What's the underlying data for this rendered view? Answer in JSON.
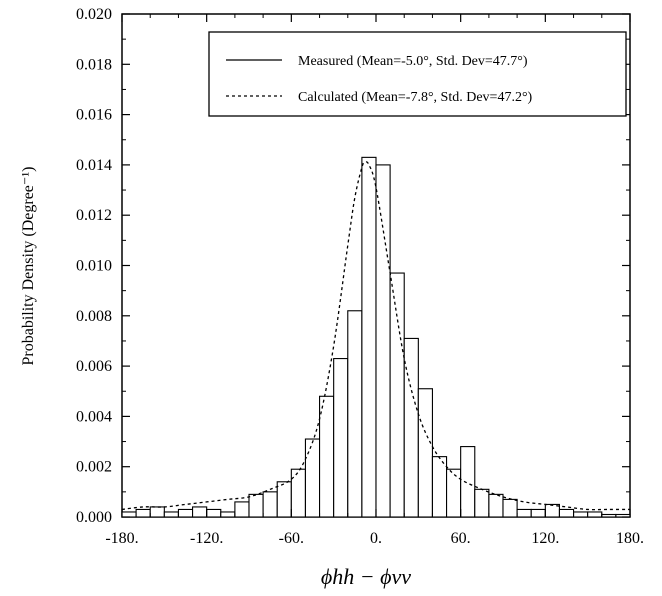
{
  "chart_data": {
    "type": "bar",
    "xlabel": "ϕhh − ϕvv",
    "ylabel": "Probability Density (Degree⁻¹)",
    "xlim": [
      -180,
      180
    ],
    "ylim": [
      0,
      0.02
    ],
    "x_ticks": [
      -180,
      -120,
      -60,
      0,
      60,
      120,
      180
    ],
    "x_tick_labels": [
      "-180.",
      "-120.",
      "-60.",
      "0.",
      "60.",
      "120.",
      "180."
    ],
    "y_ticks": [
      0,
      0.002,
      0.004,
      0.006,
      0.008,
      0.01,
      0.012,
      0.014,
      0.016,
      0.018,
      0.02
    ],
    "y_tick_labels": [
      "0.000",
      "0.002",
      "0.004",
      "0.006",
      "0.008",
      "0.010",
      "0.012",
      "0.014",
      "0.016",
      "0.018",
      "0.020"
    ],
    "bin_width": 10,
    "bin_starts": [
      -180,
      -170,
      -160,
      -150,
      -140,
      -130,
      -120,
      -110,
      -100,
      -90,
      -80,
      -70,
      -60,
      -50,
      -40,
      -30,
      -20,
      -10,
      0,
      10,
      20,
      30,
      40,
      50,
      60,
      70,
      80,
      90,
      100,
      110,
      120,
      130,
      140,
      150,
      160,
      170
    ],
    "series": [
      {
        "name": "Measured (Mean=-5.0°, Std. Dev=47.7°)",
        "style": "histogram",
        "values": [
          0.0002,
          0.0003,
          0.0004,
          0.0002,
          0.0003,
          0.0004,
          0.0003,
          0.0002,
          0.0006,
          0.0009,
          0.001,
          0.0014,
          0.0019,
          0.0031,
          0.0048,
          0.0063,
          0.0082,
          0.0143,
          0.014,
          0.0097,
          0.0071,
          0.0051,
          0.0024,
          0.0019,
          0.0028,
          0.0011,
          0.0009,
          0.0007,
          0.0003,
          0.0003,
          0.0005,
          0.0003,
          0.0002,
          0.0002,
          0.0001,
          0.0001
        ]
      },
      {
        "name": "Calculated (Mean=-7.8°, Std. Dev=47.2°)",
        "style": "dashed-line",
        "x": [
          -180,
          -165,
          -150,
          -135,
          -120,
          -105,
          -90,
          -75,
          -60,
          -50,
          -40,
          -30,
          -20,
          -15,
          -10,
          -7.8,
          -5,
          0,
          10,
          20,
          30,
          40,
          50,
          60,
          75,
          90,
          105,
          120,
          135,
          150,
          165,
          180
        ],
        "y": [
          0.0003,
          0.0004,
          0.0004,
          0.0005,
          0.0006,
          0.0007,
          0.0008,
          0.0011,
          0.0015,
          0.0023,
          0.0039,
          0.0068,
          0.0108,
          0.0127,
          0.0139,
          0.0141,
          0.014,
          0.0131,
          0.0097,
          0.0063,
          0.0041,
          0.0028,
          0.002,
          0.0015,
          0.0011,
          0.0008,
          0.0006,
          0.0005,
          0.0004,
          0.0003,
          0.0003,
          0.0003
        ]
      }
    ],
    "legend": {
      "placement": "top-right",
      "entries": [
        {
          "label": "Measured (Mean=-5.0°, Std. Dev=47.7°)",
          "style": "solid"
        },
        {
          "label": "Calculated (Mean=-7.8°, Std. Dev=47.2°)",
          "style": "dashed"
        }
      ]
    },
    "grid": false
  }
}
